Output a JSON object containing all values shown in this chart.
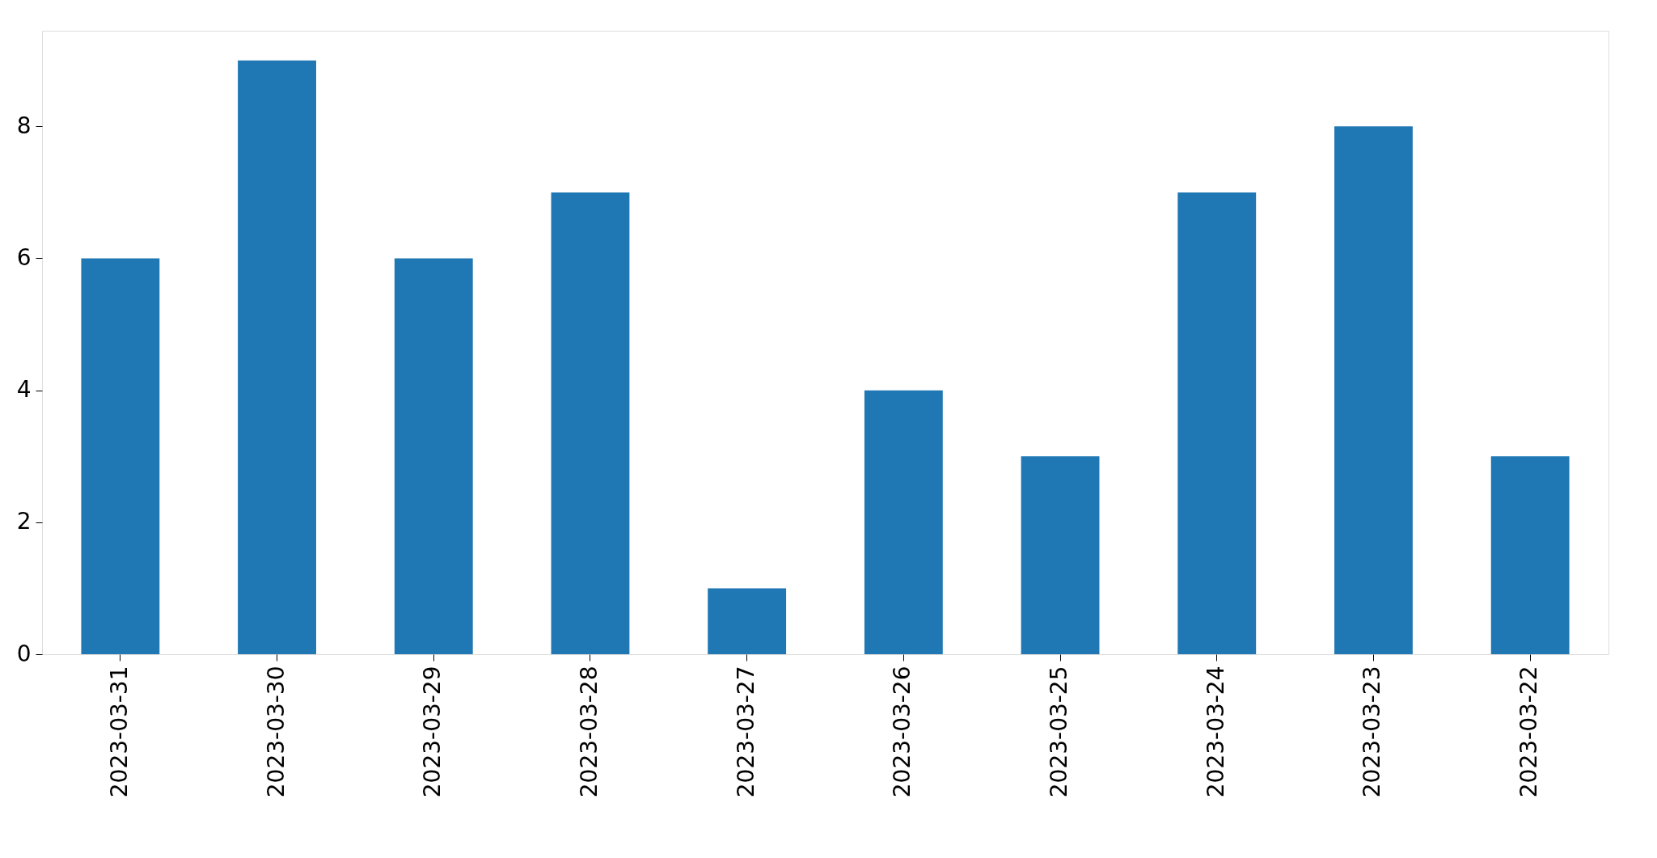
{
  "chart_data": {
    "type": "bar",
    "categories": [
      "2023-03-31",
      "2023-03-30",
      "2023-03-29",
      "2023-03-28",
      "2023-03-27",
      "2023-03-26",
      "2023-03-25",
      "2023-03-24",
      "2023-03-23",
      "2023-03-22"
    ],
    "values": [
      6,
      9,
      6,
      7,
      1,
      4,
      3,
      7,
      8,
      3
    ],
    "color": "#1f77b4",
    "ylim": [
      0,
      9.45
    ],
    "yticks": [
      0,
      2,
      4,
      6,
      8
    ],
    "grid": false
  }
}
